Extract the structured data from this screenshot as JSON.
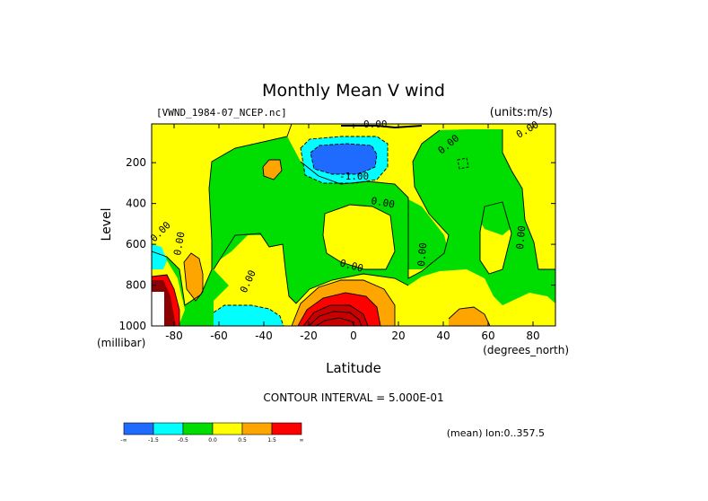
{
  "chart_data": {
    "type": "contour",
    "title": "Monthly Mean V wind",
    "dataset_label": "[VWND_1984-07_NCEP.nc]",
    "units_label": "(units:m/s)",
    "xlabel": "Latitude",
    "xunit": "(degrees_north)",
    "ylabel": "Level",
    "yunit": "(millibar)",
    "xlim": [
      -90,
      90
    ],
    "ylim": [
      1000,
      10
    ],
    "x_ticks": [
      -80,
      -60,
      -40,
      -20,
      0,
      20,
      40,
      60,
      80
    ],
    "x_tick_labels": [
      "-80",
      "-60",
      "-40",
      "-20",
      "0",
      "20",
      "40",
      "60",
      "80"
    ],
    "y_ticks": [
      200,
      400,
      600,
      800,
      1000
    ],
    "y_tick_labels": [
      "200",
      "400",
      "600",
      "800",
      "1000"
    ],
    "contour_interval_text": "CONTOUR INTERVAL = 5.000E-01",
    "contour_interval": 0.5,
    "contour_labels": [
      "0.00",
      "0.00",
      "-1.00",
      "0.00",
      "0.00",
      "0.00",
      "0.00",
      "0.00",
      "0.00",
      "0.00",
      "0.00"
    ],
    "colorbar": {
      "bins": [
        "#1f6bff",
        "#00ffff",
        "#00dd00",
        "#ffff00",
        "#ffa500",
        "#ff0000"
      ],
      "tick_labels": [
        "-∞",
        "-1.5",
        "-0.5",
        "0.0",
        "0.5",
        "1.5",
        "∞"
      ]
    },
    "fill_colors": {
      "blue": "#1f6bff",
      "cyan": "#00ffff",
      "green": "#00dd00",
      "yellow": "#ffff00",
      "orange": "#ffa500",
      "red": "#ff0000",
      "darkred": "#c80000",
      "maroon": "#8b0000",
      "white": "#ffffff"
    },
    "footer_note": "(mean) lon:0..357.5"
  }
}
